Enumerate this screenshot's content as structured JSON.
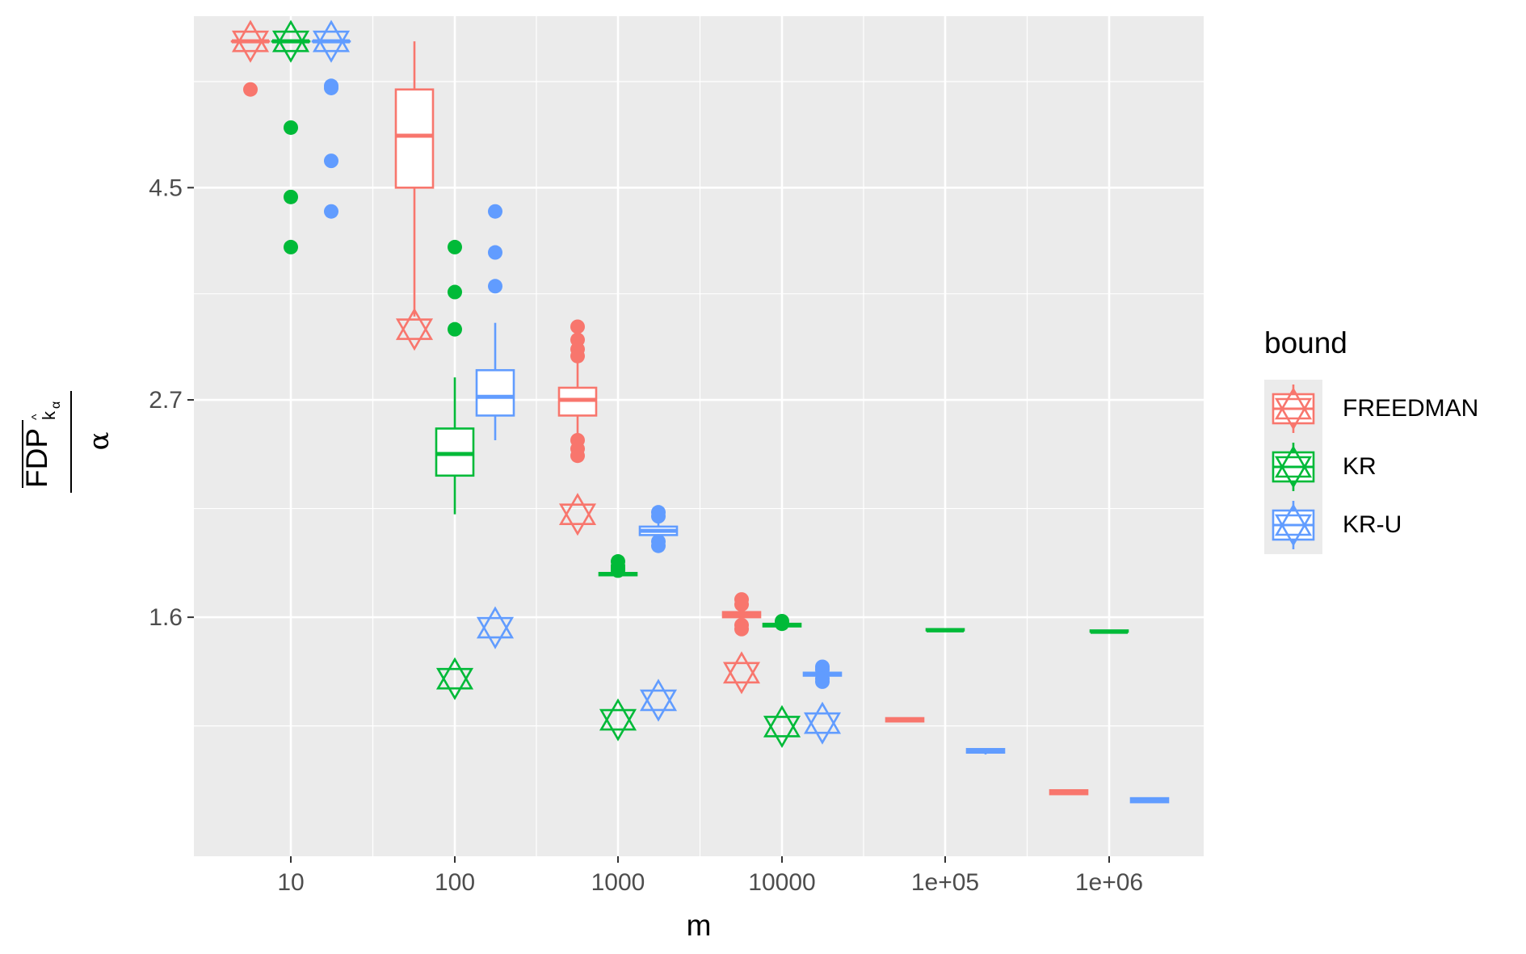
{
  "chart_data": {
    "type": "boxplot",
    "xlabel": "m",
    "ylabel": {
      "main": "FDP",
      "subscript": "k",
      "hat": "^",
      "subscript_sub": "α",
      "denominator": "α"
    },
    "x_categories": [
      "10",
      "100",
      "1000",
      "10000",
      "1e+05",
      "1e+06"
    ],
    "x_scale": "log10",
    "y_scale": "log",
    "y_ticks": [
      1.6,
      2.7,
      4.5
    ],
    "y_tick_labels": [
      "1.6",
      "2.7",
      "4.5"
    ],
    "ylim": [
      0.9,
      6.8
    ],
    "grid": true,
    "legend": {
      "title": "bound",
      "position": "right",
      "entries": [
        "FREEDMAN",
        "KR",
        "KR-U"
      ]
    },
    "colors": {
      "FREEDMAN": "#F8766D",
      "KR": "#00BA38",
      "KR-U": "#619CFF",
      "panel": "#EBEBEB",
      "grid": "#FFFFFF"
    },
    "series": [
      {
        "name": "FREEDMAN",
        "groups": [
          {
            "m": "10",
            "min": 6.4,
            "q1": 6.4,
            "median": 6.4,
            "q3": 6.4,
            "max": 6.4,
            "outliers": [
              5.7
            ],
            "star": 6.4
          },
          {
            "m": "100",
            "min": 3.3,
            "q1": 4.5,
            "median": 5.1,
            "q3": 5.7,
            "max": 6.4,
            "outliers": [],
            "star": 3.2
          },
          {
            "m": "1000",
            "min": 2.4,
            "q1": 2.6,
            "median": 2.7,
            "q3": 2.78,
            "max": 3.0,
            "outliers": [
              3.22,
              3.12,
              3.05,
              3.0,
              2.45,
              2.4,
              2.36
            ],
            "star": 2.05
          },
          {
            "m": "10000",
            "min": 1.58,
            "q1": 1.6,
            "median": 1.61,
            "q3": 1.62,
            "max": 1.64,
            "outliers": [
              1.67,
              1.65,
              1.57,
              1.555
            ],
            "star": 1.4
          },
          {
            "m": "1e+05",
            "min": 1.245,
            "q1": 1.245,
            "median": 1.25,
            "q3": 1.255,
            "max": 1.255,
            "outliers": [],
            "star": null
          },
          {
            "m": "1e+06",
            "min": 1.045,
            "q1": 1.045,
            "median": 1.05,
            "q3": 1.055,
            "max": 1.055,
            "outliers": [],
            "star": null
          }
        ]
      },
      {
        "name": "KR",
        "groups": [
          {
            "m": "10",
            "min": 6.4,
            "q1": 6.4,
            "median": 6.4,
            "q3": 6.4,
            "max": 6.4,
            "outliers": [
              5.2,
              4.4,
              3.9
            ],
            "star": 6.4
          },
          {
            "m": "100",
            "min": 2.05,
            "q1": 2.25,
            "median": 2.37,
            "q3": 2.52,
            "max": 2.85,
            "outliers": [
              3.9,
              3.5,
              3.2
            ],
            "star": 1.38
          },
          {
            "m": "1000",
            "min": 1.76,
            "q1": 1.77,
            "median": 1.775,
            "q3": 1.78,
            "max": 1.8,
            "outliers": [
              1.83,
              1.81,
              1.8,
              1.79
            ],
            "star": 1.25
          },
          {
            "m": "10000",
            "min": 1.56,
            "q1": 1.565,
            "median": 1.57,
            "q3": 1.575,
            "max": 1.58,
            "outliers": [
              1.585,
              1.575
            ],
            "star": 1.23
          },
          {
            "m": "1e+05",
            "min": 1.545,
            "q1": 1.55,
            "median": 1.55,
            "q3": 1.555,
            "max": 1.555,
            "outliers": [],
            "star": null
          },
          {
            "m": "1e+06",
            "min": 1.54,
            "q1": 1.545,
            "median": 1.545,
            "q3": 1.55,
            "max": 1.55,
            "outliers": [],
            "star": null
          }
        ]
      },
      {
        "name": "KR-U",
        "groups": [
          {
            "m": "10",
            "min": 6.4,
            "q1": 6.4,
            "median": 6.4,
            "q3": 6.4,
            "max": 6.4,
            "outliers": [
              5.75,
              5.72,
              4.8,
              4.25
            ],
            "star": 6.4
          },
          {
            "m": "100",
            "min": 2.45,
            "q1": 2.6,
            "median": 2.72,
            "q3": 2.9,
            "max": 3.25,
            "outliers": [
              4.25,
              3.85,
              3.55
            ],
            "star": 1.56
          },
          {
            "m": "1000",
            "min": 1.92,
            "q1": 1.95,
            "median": 1.97,
            "q3": 1.99,
            "max": 2.02,
            "outliers": [
              2.06,
              2.04,
              1.92,
              1.9
            ],
            "star": 1.31
          },
          {
            "m": "10000",
            "min": 1.38,
            "q1": 1.39,
            "median": 1.395,
            "q3": 1.4,
            "max": 1.41,
            "outliers": [
              1.42,
              1.41,
              1.38,
              1.37
            ],
            "star": 1.24
          },
          {
            "m": "1e+05",
            "min": 1.15,
            "q1": 1.155,
            "median": 1.16,
            "q3": 1.165,
            "max": 1.165,
            "outliers": [],
            "star": null
          },
          {
            "m": "1e+06",
            "min": 1.025,
            "q1": 1.025,
            "median": 1.03,
            "q3": 1.035,
            "max": 1.035,
            "outliers": [],
            "star": null
          }
        ]
      }
    ]
  }
}
